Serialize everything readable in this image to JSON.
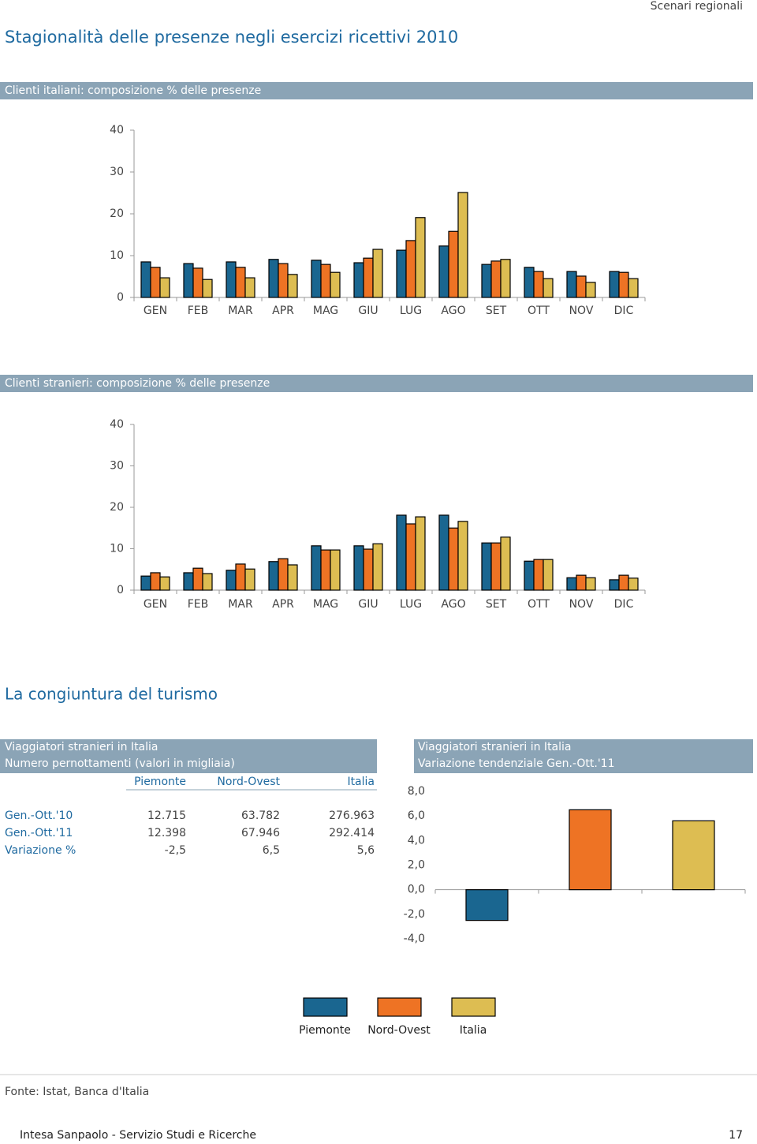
{
  "header": {
    "section": "Scenari regionali",
    "title": "Stagionalità delle presenze negli esercizi ricettivi 2010"
  },
  "chart_data": [
    {
      "type": "bar",
      "title": "Clienti italiani: composizione % delle presenze",
      "categories": [
        "GEN",
        "FEB",
        "MAR",
        "APR",
        "MAG",
        "GIU",
        "LUG",
        "AGO",
        "SET",
        "OTT",
        "NOV",
        "DIC"
      ],
      "series": [
        {
          "color": "#1a6690",
          "values": [
            8.5,
            8.1,
            8.5,
            9.1,
            8.9,
            8.3,
            11.3,
            12.3,
            7.9,
            7.2,
            6.2,
            6.2
          ]
        },
        {
          "color": "#ee7324",
          "values": [
            7.2,
            7.0,
            7.2,
            8.1,
            7.9,
            9.4,
            13.6,
            15.8,
            8.7,
            6.2,
            5.1,
            6.0
          ]
        },
        {
          "color": "#ddbd52",
          "values": [
            4.7,
            4.3,
            4.7,
            5.5,
            6.0,
            11.5,
            19.1,
            25.1,
            9.1,
            4.5,
            3.6,
            4.5
          ]
        }
      ],
      "ylim": [
        0,
        40
      ],
      "yticks": [
        0,
        10,
        20,
        30,
        40
      ]
    },
    {
      "type": "bar",
      "title": "Clienti stranieri: composizione % delle presenze",
      "categories": [
        "GEN",
        "FEB",
        "MAR",
        "APR",
        "MAG",
        "GIU",
        "LUG",
        "AGO",
        "SET",
        "OTT",
        "NOV",
        "DIC"
      ],
      "series": [
        {
          "color": "#1a6690",
          "values": [
            3.4,
            4.2,
            4.8,
            6.9,
            10.7,
            10.7,
            18.1,
            18.1,
            11.4,
            7.0,
            3.0,
            2.5
          ]
        },
        {
          "color": "#ee7324",
          "values": [
            4.2,
            5.3,
            6.3,
            7.6,
            9.7,
            9.9,
            16.0,
            15.0,
            11.4,
            7.4,
            3.6,
            3.6
          ]
        },
        {
          "color": "#ddbd52",
          "values": [
            3.2,
            4.0,
            5.1,
            6.1,
            9.7,
            11.2,
            17.7,
            16.6,
            12.8,
            7.4,
            3.0,
            2.9
          ]
        }
      ],
      "ylim": [
        0,
        40
      ],
      "yticks": [
        0,
        10,
        20,
        30,
        40
      ]
    },
    {
      "type": "bar",
      "title": "Viaggiatori stranieri in Italia",
      "subtitle": "Variazione tendenziale Gen.-Ott.'11",
      "categories": [
        "Piemonte",
        "Nord-Ovest",
        "Italia"
      ],
      "values": [
        -2.5,
        6.5,
        5.6
      ],
      "colors": [
        "#1a6690",
        "#ee7324",
        "#ddbd52"
      ],
      "ylim": [
        -4,
        8
      ],
      "yticks": [
        {
          "value": -4,
          "label": "-4,0"
        },
        {
          "value": -2,
          "label": "-2,0"
        },
        {
          "value": 0,
          "label": "0,0"
        },
        {
          "value": 2,
          "label": "2,0"
        },
        {
          "value": 4,
          "label": "4,0"
        },
        {
          "value": 6,
          "label": "6,0"
        },
        {
          "value": 8,
          "label": "8,0"
        }
      ],
      "legend": "bottom"
    }
  ],
  "section_title": "La congiuntura del turismo",
  "table": {
    "title": [
      "Viaggiatori stranieri in Italia",
      "Numero pernottamenti (valori in migliaia)"
    ],
    "columns": [
      "Piemonte",
      "Nord-Ovest",
      "Italia"
    ],
    "rows": [
      [
        "Gen.-Ott.'10",
        "12.715",
        "63.782",
        "276.963"
      ],
      [
        "Gen.-Ott.'11",
        "12.398",
        "67.946",
        "292.414"
      ],
      [
        "Variazione %",
        "-2,5",
        "6,5",
        "5,6"
      ]
    ]
  },
  "footer": {
    "source": "Fonte: Istat, Banca d'Italia",
    "publisher": "Intesa Sanpaolo - Servizio Studi e Ricerche",
    "page": "17"
  }
}
